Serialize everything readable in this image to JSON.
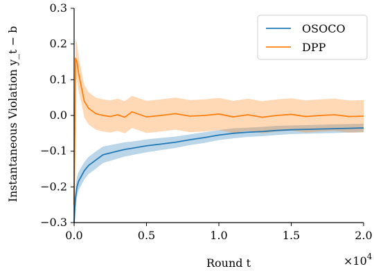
{
  "chart_data": {
    "type": "line",
    "xlabel": "Round t",
    "ylabel": "Instantaneous Violation y_t − b",
    "x_scale_label": "×10",
    "x_scale_exponent": "4",
    "xlim": [
      0,
      2.0
    ],
    "ylim": [
      -0.3,
      0.3
    ],
    "x_ticks": [
      0.0,
      0.5,
      1.0,
      1.5,
      2.0
    ],
    "x_tick_labels": [
      "0.0",
      "0.5",
      "1.0",
      "1.5",
      "2.0"
    ],
    "y_ticks": [
      -0.3,
      -0.2,
      -0.1,
      0.0,
      0.1,
      0.2,
      0.3
    ],
    "y_tick_labels": [
      "−0.3",
      "−0.2",
      "−0.1",
      "0.0",
      "0.1",
      "0.2",
      "0.3"
    ],
    "grid": false,
    "legend_position": "top-right",
    "series": [
      {
        "name": "OSOCO",
        "color": "#1f77b4",
        "x": [
          0.0,
          0.005,
          0.01,
          0.02,
          0.03,
          0.05,
          0.07,
          0.1,
          0.15,
          0.2,
          0.25,
          0.3,
          0.35,
          0.4,
          0.5,
          0.6,
          0.7,
          0.8,
          0.9,
          1.0,
          1.1,
          1.2,
          1.3,
          1.4,
          1.5,
          1.6,
          1.7,
          1.8,
          1.9,
          2.0
        ],
        "y": [
          -0.3,
          -0.26,
          -0.23,
          -0.2,
          -0.185,
          -0.17,
          -0.155,
          -0.14,
          -0.125,
          -0.11,
          -0.105,
          -0.1,
          -0.095,
          -0.092,
          -0.085,
          -0.08,
          -0.075,
          -0.068,
          -0.062,
          -0.055,
          -0.05,
          -0.047,
          -0.045,
          -0.042,
          -0.04,
          -0.039,
          -0.038,
          -0.037,
          -0.036,
          -0.035
        ],
        "band": [
          0.04,
          0.035,
          0.03,
          0.028,
          0.026,
          0.025,
          0.024,
          0.024,
          0.024,
          0.023,
          0.022,
          0.021,
          0.02,
          0.019,
          0.018,
          0.017,
          0.016,
          0.015,
          0.015,
          0.014,
          0.014,
          0.013,
          0.013,
          0.013,
          0.012,
          0.012,
          0.012,
          0.012,
          0.012,
          0.012
        ]
      },
      {
        "name": "DPP",
        "color": "#ff7f0e",
        "x": [
          0.0,
          0.005,
          0.01,
          0.02,
          0.03,
          0.05,
          0.07,
          0.1,
          0.15,
          0.2,
          0.25,
          0.3,
          0.35,
          0.4,
          0.5,
          0.6,
          0.7,
          0.8,
          0.9,
          1.0,
          1.1,
          1.2,
          1.3,
          1.4,
          1.5,
          1.6,
          1.7,
          1.8,
          1.9,
          2.0
        ],
        "y": [
          -0.25,
          -0.05,
          0.16,
          0.15,
          0.12,
          0.08,
          0.04,
          0.02,
          0.005,
          0.0,
          -0.003,
          0.002,
          -0.005,
          0.01,
          -0.004,
          0.0,
          0.005,
          -0.002,
          0.0,
          0.004,
          -0.004,
          0.002,
          -0.005,
          0.0,
          0.003,
          -0.003,
          0.0,
          0.002,
          -0.003,
          -0.002
        ],
        "band": [
          0.05,
          0.06,
          0.055,
          0.05,
          0.05,
          0.045,
          0.045,
          0.045,
          0.045,
          0.045,
          0.045,
          0.045,
          0.045,
          0.045,
          0.045,
          0.045,
          0.045,
          0.045,
          0.045,
          0.045,
          0.045,
          0.045,
          0.045,
          0.045,
          0.045,
          0.045,
          0.045,
          0.045,
          0.045,
          0.045
        ]
      }
    ]
  }
}
